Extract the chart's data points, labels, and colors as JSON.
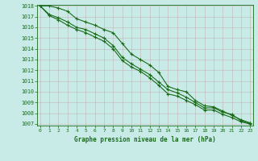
{
  "line1": [
    1018,
    1018,
    1017.8,
    1017.5,
    1016.8,
    1016.5,
    1016.2,
    1015.8,
    1015.5,
    1014.5,
    1013.5,
    1013.0,
    1012.5,
    1011.8,
    1010.5,
    1010.2,
    1010.0,
    1009.2,
    1008.7,
    1008.6,
    1008.2,
    1007.8,
    1007.4,
    1007.1
  ],
  "line2": [
    1018,
    1017.2,
    1016.9,
    1016.5,
    1016.0,
    1015.8,
    1015.4,
    1015.0,
    1014.3,
    1013.2,
    1012.6,
    1012.1,
    1011.6,
    1010.9,
    1010.2,
    1009.9,
    1009.5,
    1009.0,
    1008.5,
    1008.5,
    1008.1,
    1007.9,
    1007.3,
    1007.05
  ],
  "line3": [
    1018,
    1017.1,
    1016.7,
    1016.2,
    1015.8,
    1015.5,
    1015.1,
    1014.7,
    1014.0,
    1012.9,
    1012.3,
    1011.9,
    1011.3,
    1010.6,
    1009.8,
    1009.6,
    1009.2,
    1008.8,
    1008.3,
    1008.3,
    1007.9,
    1007.6,
    1007.2,
    1007.0
  ],
  "x": [
    0,
    1,
    2,
    3,
    4,
    5,
    6,
    7,
    8,
    9,
    10,
    11,
    12,
    13,
    14,
    15,
    16,
    17,
    18,
    19,
    20,
    21,
    22,
    23
  ],
  "ylim": [
    1007,
    1018
  ],
  "xlim": [
    0,
    23
  ],
  "yticks": [
    1007,
    1008,
    1009,
    1010,
    1011,
    1012,
    1013,
    1014,
    1015,
    1016,
    1017,
    1018
  ],
  "xticks": [
    0,
    1,
    2,
    3,
    4,
    5,
    6,
    7,
    8,
    9,
    10,
    11,
    12,
    13,
    14,
    15,
    16,
    17,
    18,
    19,
    20,
    21,
    22,
    23
  ],
  "line_color": "#1a6b1a",
  "bg_color": "#c8ebe8",
  "grid_minor_color": "#b8d8d4",
  "grid_major_color": "#9fc8c4",
  "text_color": "#1a6b1a",
  "xlabel": "Graphe pression niveau de la mer (hPa)",
  "marker": "+",
  "linewidth": 0.8
}
